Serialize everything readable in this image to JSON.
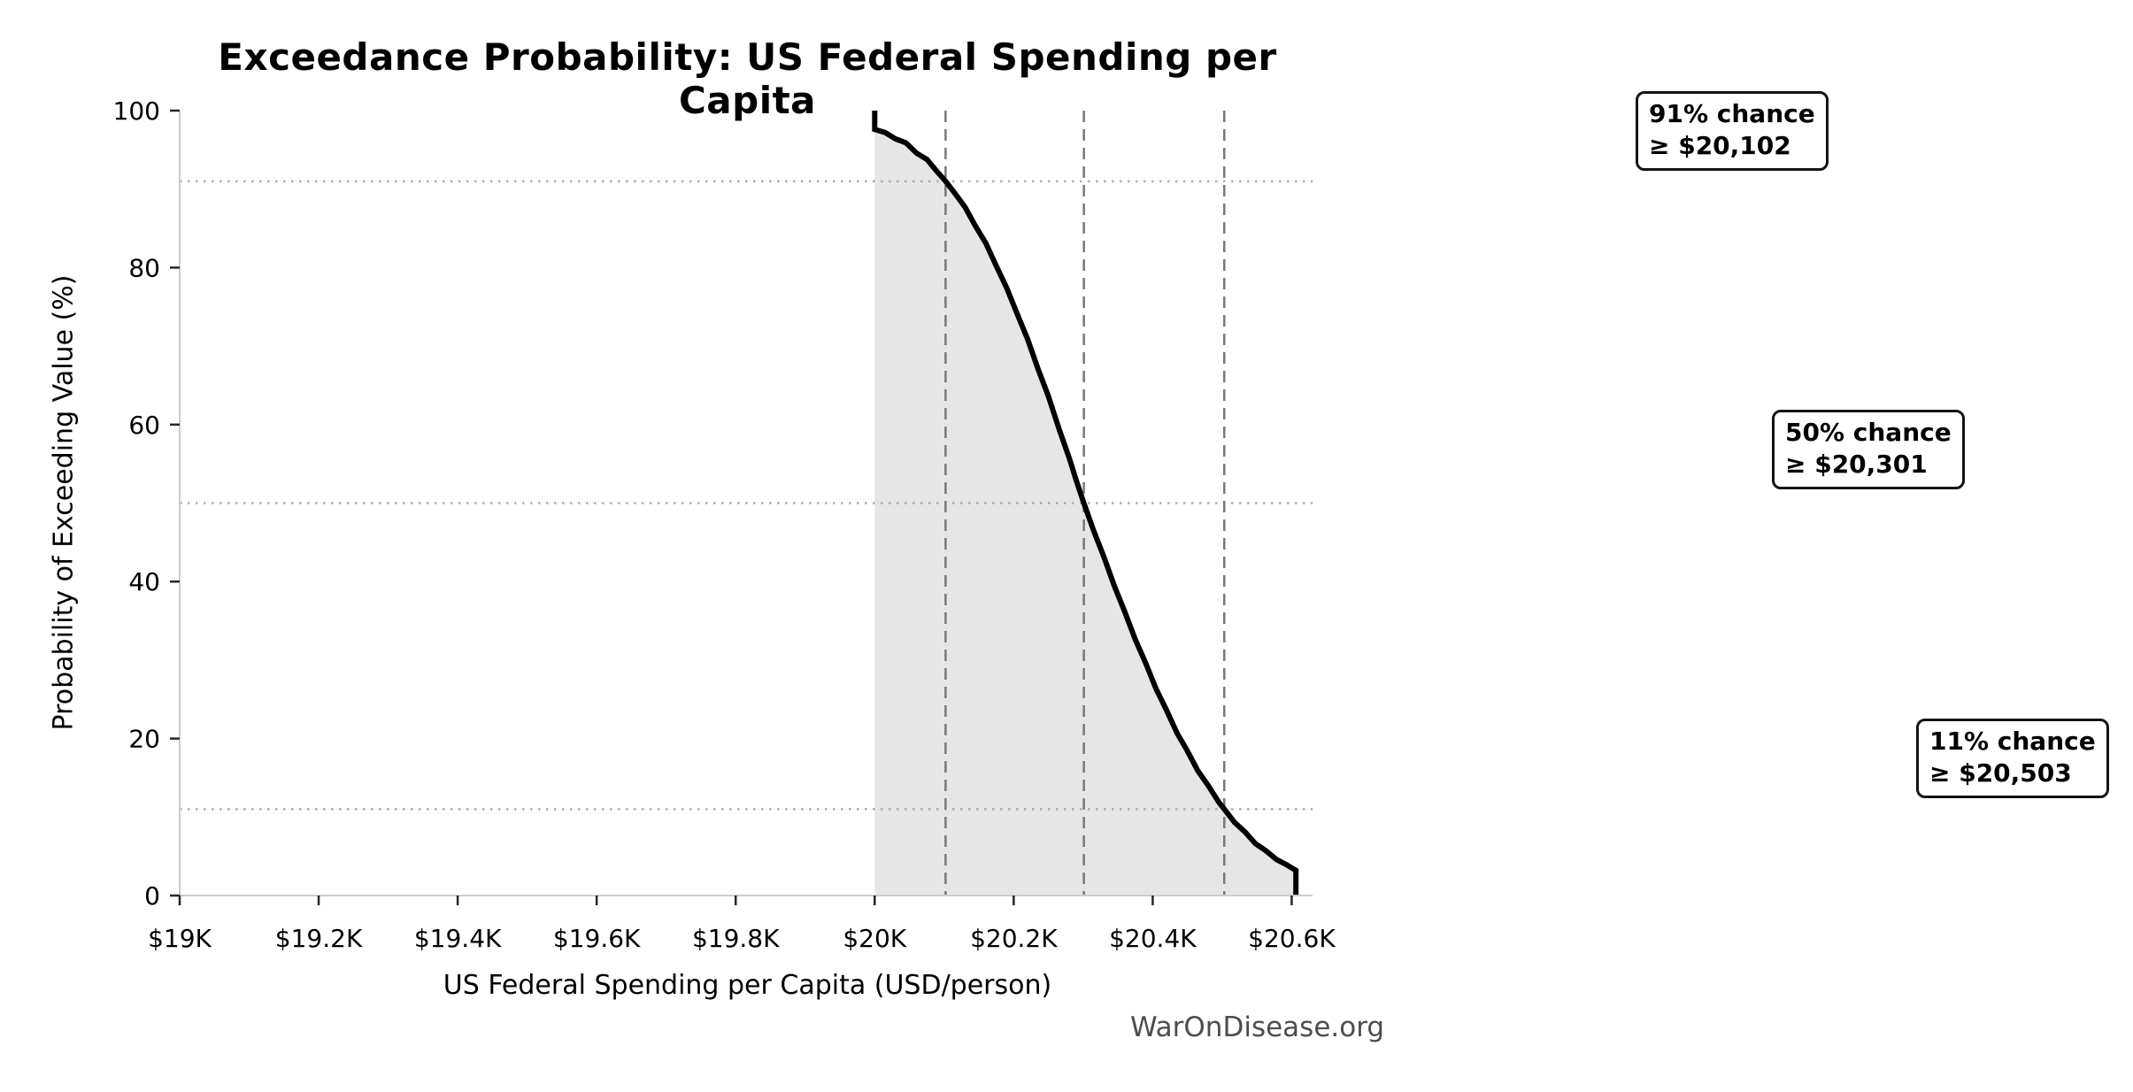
{
  "title": "Exceedance Probability: US Federal Spending per Capita",
  "watermark": "WarOnDisease.org",
  "colors": {
    "curve": "#000000",
    "fill_area": "#e6e6e6",
    "dashed_reference": "#787878",
    "dotted_reference": "#adadad",
    "axis_spine": "#cccccc",
    "tick_mark": "#262626",
    "text": "#000000",
    "watermark_text": "#4d4d4d",
    "annotation_border": "#141414",
    "annotation_background": "#ffffff"
  },
  "chart_data": {
    "type": "line",
    "title": "Exceedance Probability: US Federal Spending per Capita",
    "xlabel": "US Federal Spending per Capita (USD/person)",
    "ylabel": "Probability of Exceeding Value (%)",
    "xlim": [
      19000,
      20630
    ],
    "ylim": [
      0,
      100
    ],
    "grid": "reference lines only",
    "legend_position": "none",
    "x_ticks": [
      {
        "value": 19000,
        "label": "$19K"
      },
      {
        "value": 19200,
        "label": "$19.2K"
      },
      {
        "value": 19400,
        "label": "$19.4K"
      },
      {
        "value": 19600,
        "label": "$19.6K"
      },
      {
        "value": 19800,
        "label": "$19.8K"
      },
      {
        "value": 20000,
        "label": "$20K"
      },
      {
        "value": 20200,
        "label": "$20.2K"
      },
      {
        "value": 20400,
        "label": "$20.4K"
      },
      {
        "value": 20600,
        "label": "$20.6K"
      }
    ],
    "y_ticks": [
      {
        "value": 0,
        "label": "0"
      },
      {
        "value": 20,
        "label": "20"
      },
      {
        "value": 40,
        "label": "40"
      },
      {
        "value": 60,
        "label": "60"
      },
      {
        "value": 80,
        "label": "80"
      },
      {
        "value": 100,
        "label": "100"
      }
    ],
    "series": [
      {
        "name": "exceedance-curve",
        "fill_under": true,
        "x": [
          20000,
          20000,
          20015,
          20030,
          20045,
          20060,
          20075,
          20090,
          20102,
          20115,
          20130,
          20145,
          20160,
          20175,
          20190,
          20205,
          20220,
          20235,
          20250,
          20265,
          20280,
          20290,
          20301,
          20315,
          20330,
          20345,
          20360,
          20375,
          20390,
          20405,
          20420,
          20435,
          20450,
          20465,
          20480,
          20495,
          20503,
          20518,
          20533,
          20548,
          20563,
          20578,
          20593,
          20606,
          20606
        ],
        "y": [
          100,
          97.6,
          97.2,
          96.4,
          95.9,
          94.6,
          93.8,
          92.2,
          91.0,
          89.5,
          87.7,
          85.3,
          83.1,
          80.2,
          77.4,
          74.1,
          70.9,
          67.1,
          63.6,
          59.5,
          55.7,
          52.9,
          50.0,
          46.5,
          43.1,
          39.4,
          36.1,
          32.6,
          29.6,
          26.3,
          23.6,
          20.7,
          18.4,
          15.9,
          14.0,
          11.9,
          11.0,
          9.3,
          8.1,
          6.6,
          5.7,
          4.6,
          3.9,
          3.2,
          0
        ]
      }
    ],
    "reference_lines": [
      {
        "probability_pct": 91,
        "value_usd": 20102,
        "horizontal_style": "dotted",
        "vertical_style": "dashed"
      },
      {
        "probability_pct": 50,
        "value_usd": 20301,
        "horizontal_style": "dotted",
        "vertical_style": "dashed"
      },
      {
        "probability_pct": 11,
        "value_usd": 20503,
        "horizontal_style": "dotted",
        "vertical_style": "dashed"
      }
    ],
    "annotations": [
      {
        "line1": "91% chance",
        "line2": "≥ $20,102",
        "probability_pct": 91,
        "value_usd": 20102
      },
      {
        "line1": "50% chance",
        "line2": "≥ $20,301",
        "probability_pct": 50,
        "value_usd": 20301
      },
      {
        "line1": "11% chance",
        "line2": "≥ $20,503",
        "probability_pct": 11,
        "value_usd": 20503
      }
    ]
  }
}
